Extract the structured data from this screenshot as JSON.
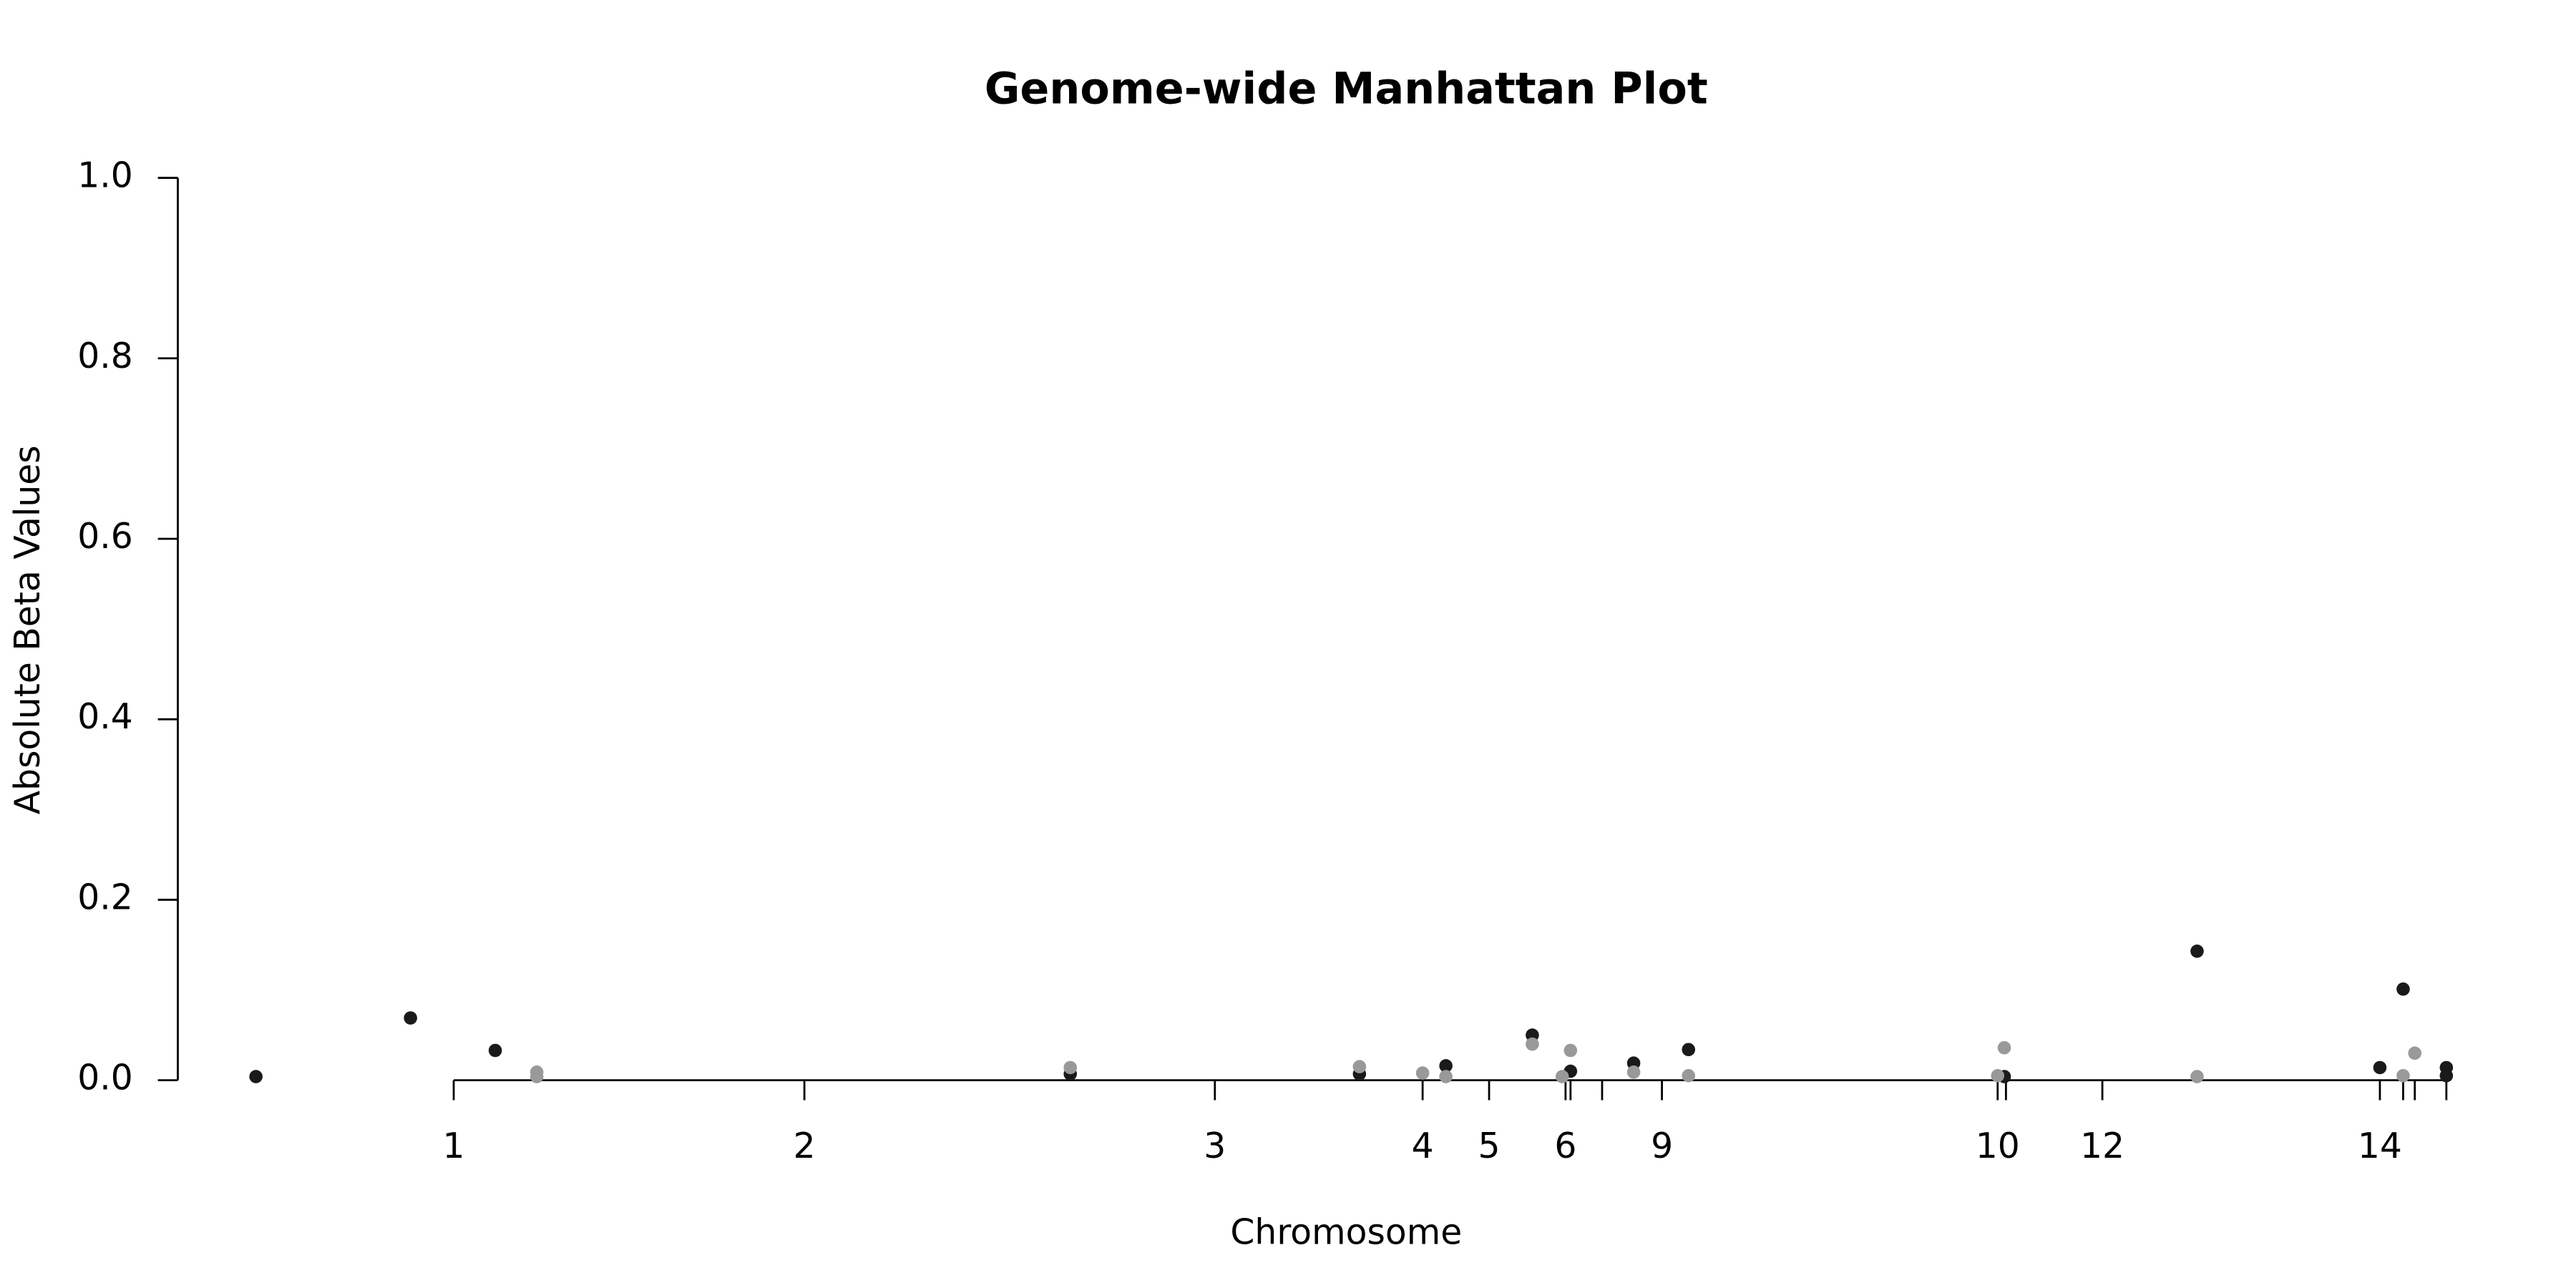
{
  "chart_data": {
    "type": "scatter",
    "title": "Genome-wide Manhattan Plot",
    "x_label": "Chromosome",
    "y_label": "Absolute Beta Values",
    "xlim": [
      -47,
      1323
    ],
    "ylim": [
      -0.04,
      1.04
    ],
    "yticks": [
      {
        "value": 0,
        "label": "0.0"
      },
      0.2,
      0.4,
      0.6,
      0.8,
      {
        "value": 1,
        "label": "1.0"
      }
    ],
    "xticks": [
      {
        "value": 119,
        "label": "1"
      },
      {
        "value": 330,
        "label": "2"
      },
      {
        "value": 577,
        "label": "3"
      },
      {
        "value": 702,
        "label": "4"
      },
      {
        "value": 742,
        "label": "5"
      },
      {
        "value": 788,
        "label": "6"
      },
      {
        "value": 846,
        "label": "9"
      },
      {
        "value": 1048,
        "label": "10"
      },
      {
        "value": 1111,
        "label": "12"
      },
      {
        "value": 1278,
        "label": "14"
      }
    ],
    "unlabeled_xticks": [
      791,
      810,
      1053,
      1292,
      1299,
      1318
    ],
    "series": [
      {
        "color": "#1a1a1a",
        "x": [
          0,
          93,
          144,
          490,
          664,
          716,
          768,
          791,
          829,
          862,
          1052,
          1168,
          1278,
          1292,
          1318,
          1318
        ],
        "values": [
          0.004,
          0.069,
          0.033,
          0.007,
          0.007,
          0.016,
          0.05,
          0.01,
          0.019,
          0.034,
          0.004,
          0.143,
          0.014,
          0.101,
          0.014,
          0.005
        ]
      },
      {
        "color": "#999999",
        "x": [
          169,
          169,
          490,
          664,
          702,
          716,
          768,
          791,
          786,
          829,
          862,
          1048,
          1052,
          1168,
          1292,
          1299
        ],
        "values": [
          0.009,
          0.004,
          0.014,
          0.015,
          0.008,
          0.004,
          0.04,
          0.033,
          0.004,
          0.009,
          0.005,
          0.005,
          0.036,
          0.004,
          0.005,
          0.03
        ]
      }
    ]
  }
}
